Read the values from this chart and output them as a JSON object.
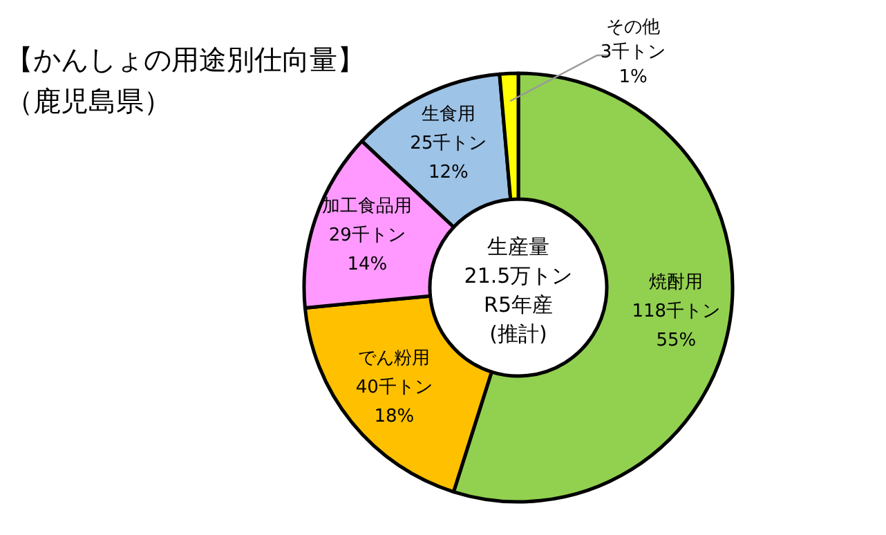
{
  "chart_data": {
    "type": "donut",
    "title": "【かんしょの用途別仕向量】",
    "subtitle": "（鹿児島県）",
    "categories": [
      "焼酎用",
      "でん粉用",
      "加工食品用",
      "生食用",
      "その他"
    ],
    "values": [
      118,
      40,
      29,
      25,
      3
    ],
    "value_labels": [
      "118千トン\n55%",
      "40千トン\n18%",
      "29千トン\n14%",
      "25千トン\n12%",
      "3千トン\n1%"
    ],
    "colors": [
      "#92d050",
      "#ffc000",
      "#ff99ff",
      "#9dc3e6",
      "#ffff00"
    ],
    "annotations": [
      "生産量\n21.5万トン\nR5年産\n(推計)"
    ]
  }
}
